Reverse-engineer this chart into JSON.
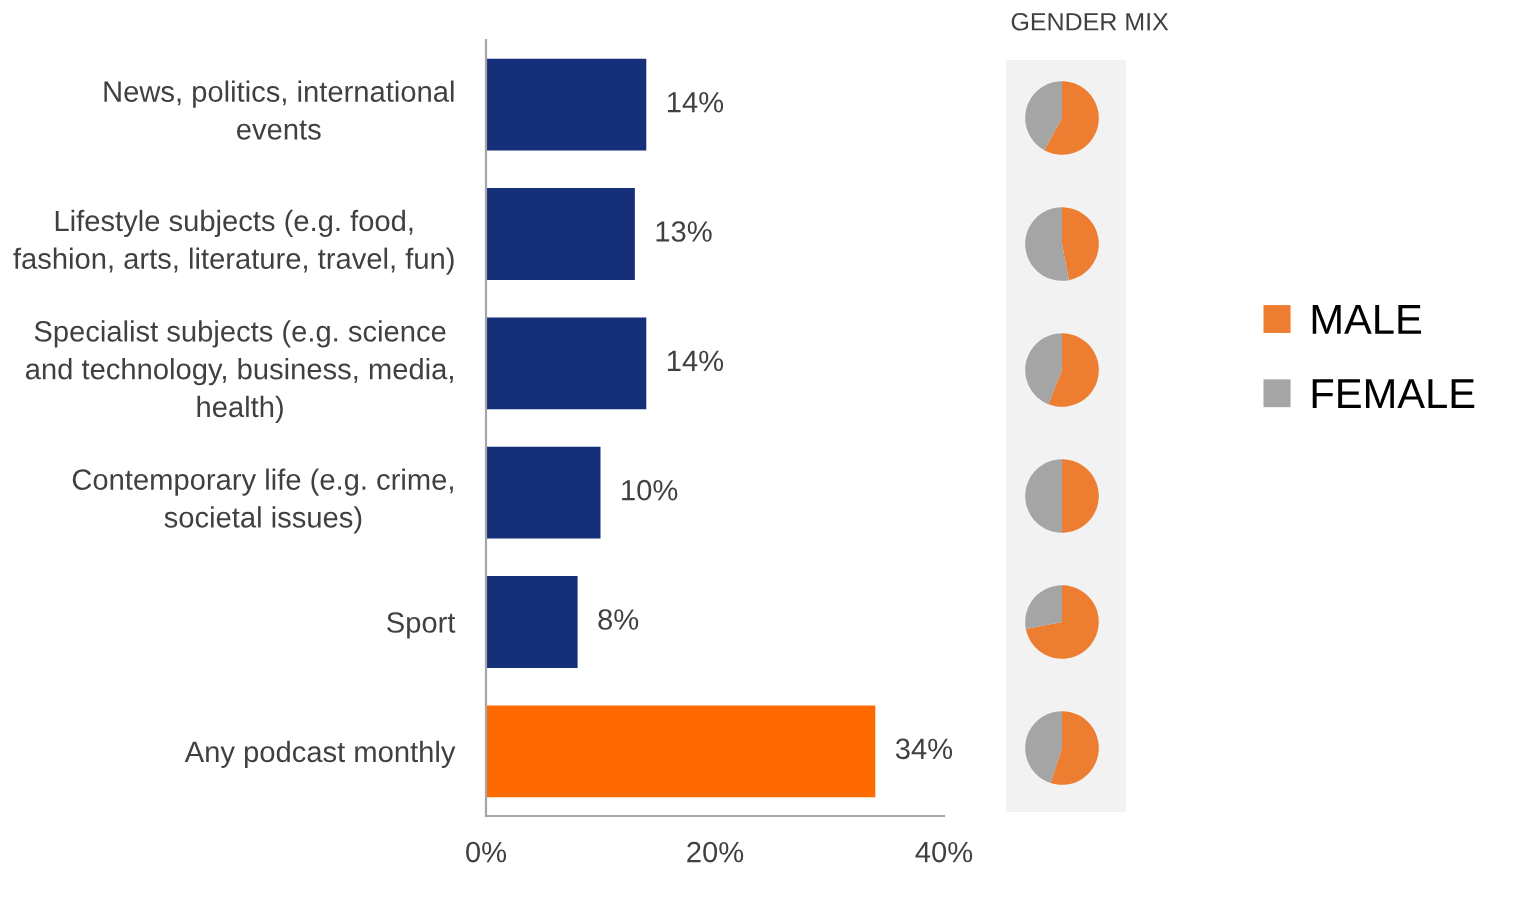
{
  "chart_data": [
    {
      "type": "bar",
      "orientation": "horizontal",
      "categories": [
        "News, politics, international\nevents",
        "Lifestyle subjects (e.g. food,\nfashion, arts, literature, travel, fun)",
        "Specialist subjects (e.g. science\nand technology, business, media,\nhealth)",
        "Contemporary life (e.g. crime,\nsocietal issues)",
        "Sport",
        "Any podcast monthly"
      ],
      "values": [
        14,
        13,
        14,
        10,
        8,
        34
      ],
      "colors": [
        "#152f79",
        "#152f79",
        "#152f79",
        "#152f79",
        "#152f79",
        "#ff6a00"
      ],
      "value_labels": [
        "14%",
        "13%",
        "14%",
        "10%",
        "8%",
        "34%"
      ],
      "xlim": [
        0,
        40
      ],
      "xticks": [
        {
          "value": 0,
          "label": "0%"
        },
        {
          "value": 20,
          "label": "20%"
        },
        {
          "value": 40,
          "label": "40%"
        }
      ]
    },
    {
      "type": "pie",
      "title": "GENDER MIX",
      "legend": "right",
      "categories": [
        "MALE",
        "FEMALE"
      ],
      "values": [
        58,
        42
      ],
      "colors": [
        "#ed7d31",
        "#a5a5a5"
      ]
    },
    {
      "type": "pie",
      "categories": [
        null,
        null
      ],
      "values": [
        47,
        53
      ],
      "colors": [
        "#ed7d31",
        "#a5a5a5"
      ]
    },
    {
      "type": "pie",
      "categories": [
        null,
        null
      ],
      "values": [
        56,
        44
      ],
      "colors": [
        "#ed7d31",
        "#a5a5a5"
      ]
    },
    {
      "type": "pie",
      "categories": [
        null,
        null
      ],
      "values": [
        50,
        50
      ],
      "colors": [
        "#ed7d31",
        "#a5a5a5"
      ]
    },
    {
      "type": "pie",
      "categories": [
        null,
        null
      ],
      "values": [
        72,
        28
      ],
      "colors": [
        "#ed7d31",
        "#a5a5a5"
      ]
    },
    {
      "type": "pie",
      "categories": [
        null,
        null
      ],
      "values": [
        55,
        45
      ],
      "colors": [
        "#ed7d31",
        "#a5a5a5"
      ]
    }
  ]
}
